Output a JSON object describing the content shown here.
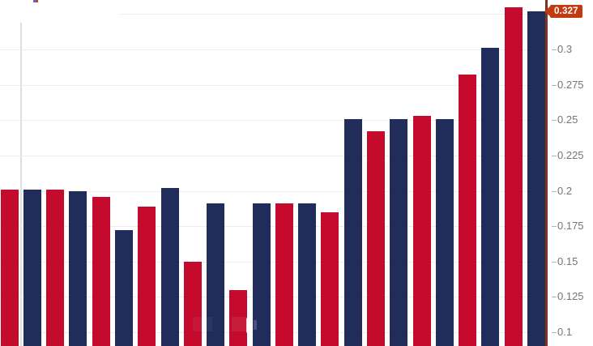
{
  "chart_data": {
    "type": "bar",
    "title": "",
    "xlabel": "",
    "ylabel": "",
    "axis_side": "right",
    "grid": true,
    "y_ticks": [
      0.3,
      0.275,
      0.25,
      0.225,
      0.2,
      0.175,
      0.15,
      0.125,
      0.1
    ],
    "y_grid_top": 0.325,
    "ylim_visible": [
      0.093,
      0.335
    ],
    "bars": [
      {
        "v": 0.201,
        "c": "crimson"
      },
      {
        "v": 0.201,
        "c": "navy"
      },
      {
        "v": 0.201,
        "c": "crimson"
      },
      {
        "v": 0.2,
        "c": "navy"
      },
      {
        "v": 0.196,
        "c": "crimson"
      },
      {
        "v": 0.172,
        "c": "navy"
      },
      {
        "v": 0.189,
        "c": "crimson"
      },
      {
        "v": 0.202,
        "c": "navy"
      },
      {
        "v": 0.15,
        "c": "crimson"
      },
      {
        "v": 0.191,
        "c": "navy"
      },
      {
        "v": 0.13,
        "c": "crimson"
      },
      {
        "v": 0.191,
        "c": "navy"
      },
      {
        "v": 0.191,
        "c": "crimson"
      },
      {
        "v": 0.191,
        "c": "navy"
      },
      {
        "v": 0.185,
        "c": "crimson"
      },
      {
        "v": 0.251,
        "c": "navy"
      },
      {
        "v": 0.242,
        "c": "crimson"
      },
      {
        "v": 0.251,
        "c": "navy"
      },
      {
        "v": 0.253,
        "c": "crimson"
      },
      {
        "v": 0.251,
        "c": "navy"
      },
      {
        "v": 0.282,
        "c": "crimson"
      },
      {
        "v": 0.301,
        "c": "navy"
      },
      {
        "v": 0.33,
        "c": "crimson"
      },
      {
        "v": 0.327,
        "c": "navy"
      }
    ],
    "colors": {
      "crimson": "#c40b2e",
      "navy": "#202c59",
      "grid": "#ececec",
      "axis_text": "#757575"
    },
    "last_value_badge": {
      "label": "0.327",
      "value": 0.327,
      "bg": "#c23b10",
      "text_color": "#ffffff"
    }
  }
}
